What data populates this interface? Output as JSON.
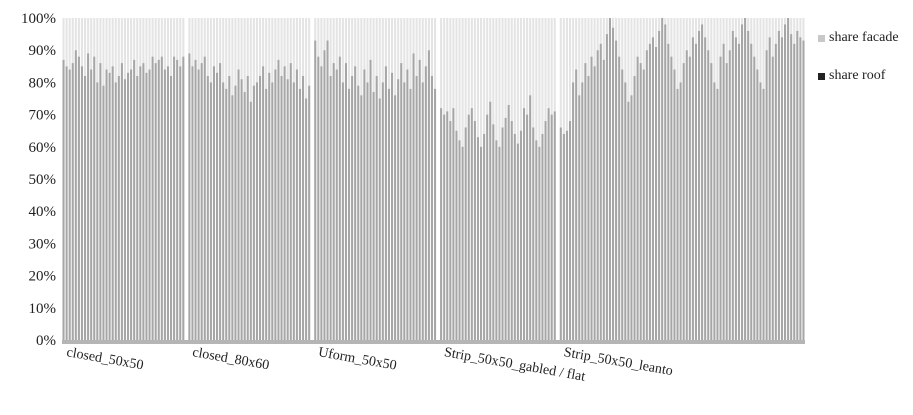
{
  "chart_data": {
    "type": "bar",
    "stacked": true,
    "percent": true,
    "title": "",
    "xlabel": "",
    "ylabel": "",
    "ylim": [
      0,
      100
    ],
    "y_ticks": [
      "0%",
      "10%",
      "20%",
      "30%",
      "40%",
      "50%",
      "60%",
      "70%",
      "80%",
      "90%",
      "100%"
    ],
    "grid": false,
    "legend": {
      "placement": "right",
      "entries": [
        {
          "label": "share facade",
          "color": "#c8c8c8"
        },
        {
          "label": "share roof",
          "color": "#222222"
        }
      ]
    },
    "series_colors": {
      "facade": "#e4e4e4",
      "roof": "#a6a6a6"
    },
    "groups": [
      {
        "label": "closed_50x50",
        "count": 40,
        "values": [
          87,
          85,
          84,
          86,
          90,
          88,
          85,
          82,
          89,
          84,
          88,
          80,
          86,
          79,
          84,
          83,
          85,
          80,
          82,
          86,
          81,
          83,
          84,
          87,
          82,
          85,
          86,
          83,
          84,
          88,
          86,
          87,
          88,
          84,
          85,
          82,
          88,
          87,
          85,
          88
        ]
      },
      {
        "label": "closed_80x60",
        "count": 40,
        "values": [
          89,
          85,
          87,
          84,
          86,
          88,
          82,
          80,
          85,
          83,
          86,
          80,
          78,
          82,
          76,
          79,
          84,
          81,
          77,
          82,
          74,
          79,
          80,
          82,
          85,
          78,
          83,
          80,
          84,
          87,
          82,
          85,
          81,
          86,
          80,
          84,
          78,
          82,
          75,
          79
        ]
      },
      {
        "label": "Uform_50x50",
        "count": 40,
        "values": [
          93,
          88,
          85,
          90,
          93,
          82,
          86,
          84,
          88,
          80,
          86,
          78,
          82,
          85,
          79,
          76,
          84,
          80,
          87,
          77,
          82,
          75,
          80,
          85,
          78,
          83,
          76,
          81,
          86,
          80,
          84,
          78,
          89,
          82,
          87,
          80,
          85,
          90,
          82,
          78
        ]
      },
      {
        "label": "Strip_50x50_gabled / flat",
        "count": 38,
        "values": [
          72,
          70,
          71,
          68,
          72,
          65,
          62,
          60,
          66,
          70,
          72,
          68,
          63,
          60,
          64,
          70,
          74,
          67,
          62,
          60,
          66,
          69,
          73,
          68,
          64,
          61,
          65,
          72,
          70,
          76,
          66,
          62,
          60,
          64,
          68,
          72,
          70,
          71
        ]
      },
      {
        "label": "Strip_50x50_leanto",
        "count": 80,
        "values": [
          66,
          64,
          65,
          68,
          80,
          84,
          76,
          80,
          86,
          82,
          88,
          85,
          90,
          92,
          87,
          95,
          100,
          97,
          93,
          88,
          84,
          80,
          74,
          76,
          82,
          88,
          86,
          84,
          90,
          92,
          94,
          91,
          96,
          100,
          98,
          92,
          88,
          84,
          78,
          80,
          86,
          90,
          88,
          94,
          92,
          96,
          98,
          94,
          90,
          86,
          80,
          78,
          88,
          92,
          86,
          90,
          96,
          94,
          92,
          98,
          100,
          96,
          92,
          88,
          84,
          80,
          78,
          90,
          94,
          88,
          92,
          96,
          94,
          98,
          100,
          95,
          92,
          96,
          94,
          93
        ]
      }
    ]
  }
}
